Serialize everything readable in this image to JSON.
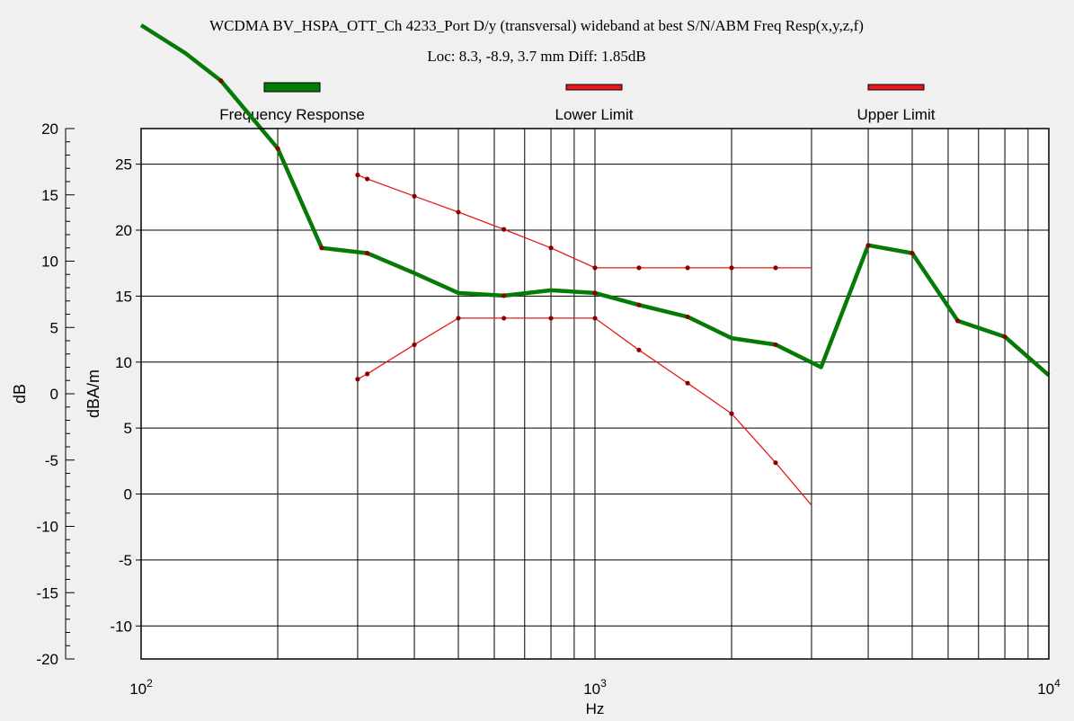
{
  "chart_data": {
    "type": "line",
    "title": "WCDMA BV_HSPA_OTT_Ch 4233_Port D/y (transversal) wideband at best S/N/ABM Freq Resp(x,y,z,f)",
    "subtitle": "Loc: 8.3, -8.9, 3.7 mm Diff: 1.85dB",
    "xlabel": "Hz",
    "ylabel_left": "dB",
    "ylabel_right": "dBA/m",
    "x_scale": "log",
    "xlim": [
      100,
      10000
    ],
    "x_ticks": [
      {
        "base": "10",
        "exp": "2"
      },
      {
        "base": "10",
        "exp": "3"
      },
      {
        "base": "10",
        "exp": "4"
      }
    ],
    "ylim_left": [
      -20,
      20
    ],
    "y_ticks_left": [
      "20",
      "15",
      "10",
      "5",
      "0",
      "-5",
      "-10",
      "-15",
      "-20"
    ],
    "ylim_right": [
      -12.5,
      27.7
    ],
    "y_ticks_right": [
      "25",
      "20",
      "15",
      "10",
      "5",
      "0",
      "-5",
      "-10"
    ],
    "grid": true,
    "legend_position": "top",
    "colors": {
      "frequency_response": "#067a06",
      "limits": "#e81818",
      "marker": "#8b0000"
    },
    "series": [
      {
        "name": "Frequency Response",
        "x": [
          100,
          125,
          150,
          200,
          250,
          315,
          400,
          500,
          630,
          800,
          1000,
          1250,
          1600,
          2000,
          2500,
          3150,
          4000,
          5000,
          6300,
          8000,
          10000
        ],
        "y": [
          27.8,
          25.7,
          23.6,
          18.5,
          11.0,
          10.6,
          9.1,
          7.6,
          7.4,
          7.8,
          7.6,
          6.7,
          5.8,
          4.2,
          3.7,
          2.0,
          11.2,
          10.6,
          5.5,
          4.3,
          1.4
        ],
        "markers_x": [
          150,
          200,
          250,
          315,
          630,
          1000,
          1250,
          1600,
          2500,
          4000,
          5000,
          6300,
          8000
        ]
      },
      {
        "name": "Lower Limit",
        "x": [
          300,
          315,
          400,
          500,
          630,
          800,
          1000,
          1250,
          1600,
          2000,
          2500,
          3000
        ],
        "y": [
          1.1,
          1.5,
          3.7,
          5.7,
          5.7,
          5.7,
          5.7,
          3.3,
          0.8,
          -1.5,
          -5.2,
          -8.4
        ],
        "markers_x": [
          300,
          315,
          400,
          500,
          630,
          800,
          1000,
          1250,
          1600,
          2000,
          2500
        ]
      },
      {
        "name": "Upper Limit",
        "x": [
          300,
          315,
          400,
          500,
          630,
          800,
          1000,
          1250,
          1600,
          2000,
          2500,
          3000
        ],
        "y": [
          16.5,
          16.2,
          14.9,
          13.7,
          12.4,
          11.0,
          9.5,
          9.5,
          9.5,
          9.5,
          9.5,
          9.5
        ],
        "markers_x": [
          300,
          315,
          400,
          500,
          630,
          800,
          1000,
          1250,
          1600,
          2000,
          2500
        ]
      }
    ]
  }
}
